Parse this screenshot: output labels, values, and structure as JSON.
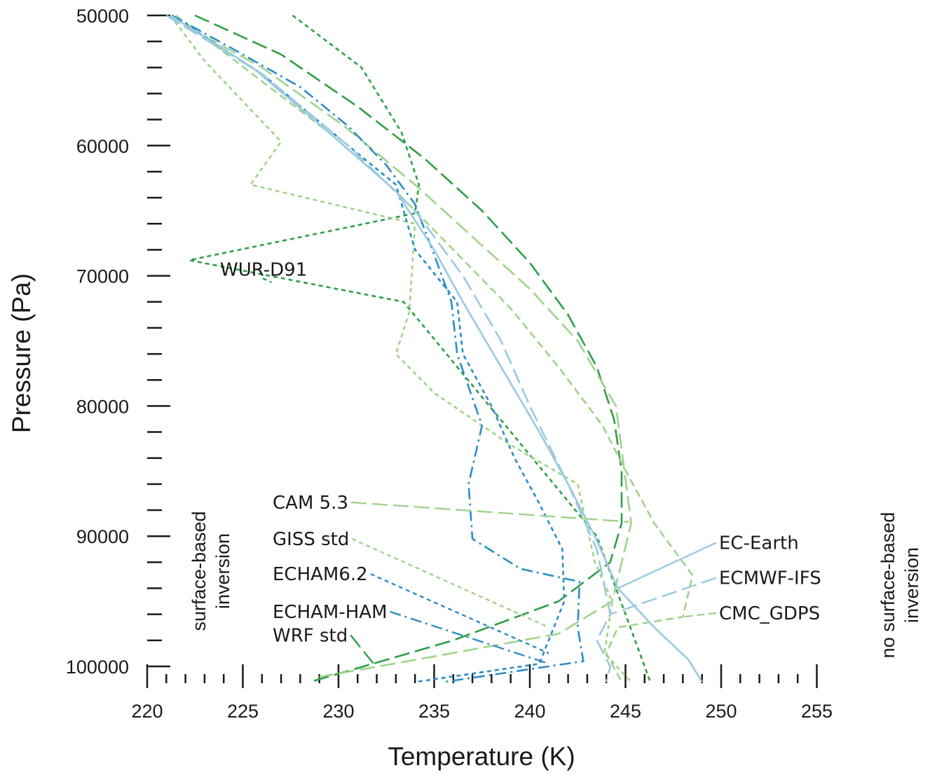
{
  "chart_data": {
    "type": "line",
    "xlabel": "Temperature (K)",
    "ylabel": "Pressure (Pa)",
    "xlim": [
      220,
      255
    ],
    "ylim": [
      50000,
      101200
    ],
    "y_inverted": true,
    "x_ticks": [
      "220",
      "225",
      "230",
      "235",
      "240",
      "245",
      "250",
      "255"
    ],
    "y_ticks": [
      "50000",
      "60000",
      "70000",
      "80000",
      "90000",
      "100000"
    ],
    "x_minor_step": 1,
    "y_minor_step": 2000,
    "grid": false,
    "annotations": {
      "left_region": [
        "surface-based",
        "inversion"
      ],
      "right_region": [
        "no surface-based",
        "inversion"
      ]
    },
    "series": [
      {
        "name": "WUR-D91",
        "color": "#2e9e46",
        "dash": "short",
        "x": [
          227.6,
          231.2,
          233.3,
          234.2,
          234.0,
          222.2,
          233.4,
          243.5,
          246.3
        ],
        "y": [
          50000,
          54000,
          59000,
          63000,
          65200,
          68800,
          72000,
          90000,
          101200
        ],
        "label": {
          "x": 225,
          "y": 69500,
          "pointer_x": 226.5,
          "pointer_y": 70500
        }
      },
      {
        "name": "WRF std",
        "color": "#2e9e46",
        "dash": "long",
        "x": [
          222.5,
          227.0,
          231.0,
          234.5,
          237.5,
          240.0,
          242.0,
          243.5,
          244.4,
          244.8,
          244.8,
          244.2,
          241.5,
          236.0,
          228.5
        ],
        "y": [
          50000,
          53000,
          57000,
          61000,
          65000,
          69000,
          73000,
          77000,
          81000,
          85000,
          89000,
          92000,
          95000,
          98000,
          101200
        ],
        "label": {
          "x": 219.8,
          "y": 97600,
          "pointer_x": 232.0,
          "pointer_y": 100100
        }
      },
      {
        "name": "CAM 5.3",
        "color": "#9fd38b",
        "dash": "long",
        "x": [
          221.0,
          226.0,
          230.3,
          234.0,
          237.0,
          240.0,
          242.5,
          244.5,
          245.3,
          244.3,
          241.5,
          234.0,
          229.0
        ],
        "y": [
          50000,
          54000,
          58500,
          63000,
          67000,
          71000,
          75000,
          80000,
          89000,
          95000,
          97500,
          99500,
          100800
        ],
        "label": {
          "x": 219.8,
          "y": 87400,
          "pointer_x": 245.2,
          "pointer_y": 88900
        }
      },
      {
        "name": "GISS std",
        "color": "#9fd38b",
        "dash": "short",
        "x": [
          221.2,
          223.0,
          227.0,
          225.4,
          234.0,
          233.7,
          233.0,
          235.0,
          239.0,
          242.5,
          243.4,
          244.3,
          243.9,
          245.3
        ],
        "y": [
          50000,
          53500,
          59700,
          63000,
          66000,
          72800,
          76000,
          79000,
          83000,
          86000,
          92000,
          95000,
          99000,
          101200
        ],
        "label": {
          "x": 219.8,
          "y": 90200,
          "pointer_x": 241.0,
          "pointer_y": 97000
        }
      },
      {
        "name": "CMC_GDPS",
        "color": "#9fd38b",
        "dash": "medium",
        "x": [
          221.5,
          225.5,
          229.5,
          233.0,
          236.0,
          239.0,
          241.5,
          243.8,
          245.2,
          246.5,
          248.5,
          248.0,
          244.6,
          244.0,
          244.8
        ],
        "y": [
          50000,
          54500,
          59000,
          63500,
          68000,
          72500,
          77000,
          81500,
          85500,
          89000,
          93000,
          96200,
          97000,
          99000,
          101200
        ],
        "label": {
          "x": 250,
          "y": 95900,
          "pointer_x": 248.0,
          "pointer_y": 96200
        }
      },
      {
        "name": "ECHAM6.2",
        "color": "#2b8dc5",
        "dash": "short",
        "x": [
          221.3,
          226.0,
          230.5,
          233.0,
          234.0,
          236.2,
          236.5,
          238.0,
          239.2,
          240.5,
          241.7,
          241.8,
          240.5,
          234.0
        ],
        "y": [
          50000,
          54500,
          60000,
          63000,
          68000,
          72000,
          76000,
          80000,
          84000,
          87500,
          91000,
          95000,
          99800,
          101200
        ],
        "label": {
          "x": 219.8,
          "y": 92900,
          "pointer_x": 241.0,
          "pointer_y": 99000
        }
      },
      {
        "name": "ECHAM-HAM",
        "color": "#2b8dc5",
        "dash": "dashdot",
        "x": [
          221.3,
          225.0,
          228.0,
          230.5,
          232.5,
          234.0,
          234.9,
          235.9,
          236.2,
          237.5,
          236.8,
          237.0,
          239.5,
          242.6,
          242.5,
          242.8,
          235.5
        ],
        "y": [
          50000,
          53000,
          55500,
          58500,
          61500,
          64500,
          68000,
          72000,
          76000,
          81500,
          86000,
          90200,
          92500,
          93500,
          97000,
          99600,
          101200
        ],
        "label": {
          "x": 219.8,
          "y": 95800,
          "pointer_x": 241.0,
          "pointer_y": 99800
        }
      },
      {
        "name": "EC-Earth",
        "color": "#9bc9e0",
        "dash": "solid",
        "x": [
          221.2,
          225.5,
          229.5,
          233.0,
          235.0,
          236.5,
          238.5,
          240.5,
          242.0,
          243.4,
          244.6,
          246.5,
          248.3,
          249.0
        ],
        "y": [
          50000,
          54000,
          59000,
          63500,
          68000,
          72000,
          77000,
          82000,
          86000,
          90000,
          94000,
          97000,
          99500,
          101200
        ],
        "label": {
          "x": 250,
          "y": 90500,
          "pointer_x": 244.6,
          "pointer_y": 94000
        }
      },
      {
        "name": "ECMWF-IFS",
        "color": "#9bc9e0",
        "dash": "long",
        "x": [
          221.0,
          226.0,
          230.5,
          234.0,
          236.5,
          238.5,
          240.0,
          242.0,
          243.5,
          244.2,
          243.5,
          244.2,
          244.0
        ],
        "y": [
          50000,
          54500,
          60000,
          65000,
          70000,
          75000,
          80000,
          86000,
          91000,
          96000,
          98000,
          100000,
          101200
        ],
        "label": {
          "x": 250,
          "y": 93200,
          "pointer_x": 244.2,
          "pointer_y": 96000
        }
      }
    ]
  }
}
